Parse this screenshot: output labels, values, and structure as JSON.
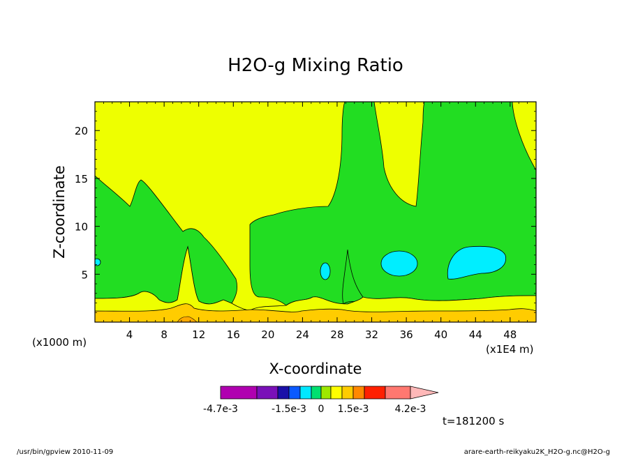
{
  "chart_data": {
    "type": "heatmap",
    "title": "H2O-g Mixing Ratio",
    "xlabel": "X-coordinate",
    "ylabel": "Z-coordinate",
    "x_unit_left": "(x1000 m)",
    "x_unit_right": "(x1E4 m)",
    "xlim": [
      0,
      51
    ],
    "ylim": [
      0,
      23
    ],
    "x_ticks": [
      4,
      8,
      12,
      16,
      20,
      24,
      28,
      32,
      36,
      40,
      44,
      48
    ],
    "y_ticks": [
      5,
      10,
      15,
      20
    ],
    "colorbar": {
      "colors": [
        "#b000b0",
        "#7a10b8",
        "#1a10a8",
        "#0a5aff",
        "#00e8ff",
        "#00e070",
        "#9ee800",
        "#ffff00",
        "#ffcc00",
        "#ff8800",
        "#ff2000",
        "#ff7870",
        "#ffb8b8"
      ],
      "labels": [
        "-4.7e-3",
        "-1.5e-3",
        "0",
        "1.5e-3",
        "4.2e-3"
      ]
    },
    "regions": [
      {
        "level": "yellow",
        "color": "#eeff00"
      },
      {
        "level": "green",
        "color": "#22dd22"
      },
      {
        "level": "cyan",
        "color": "#00eeff"
      },
      {
        "level": "orange",
        "color": "#ffcc00"
      }
    ]
  },
  "time_label": "t=181200 s",
  "footer": {
    "left": "/usr/bin/gpview  2010-11-09",
    "right": "arare-earth-reikyaku2K_H2O-g.nc@H2O-g"
  }
}
